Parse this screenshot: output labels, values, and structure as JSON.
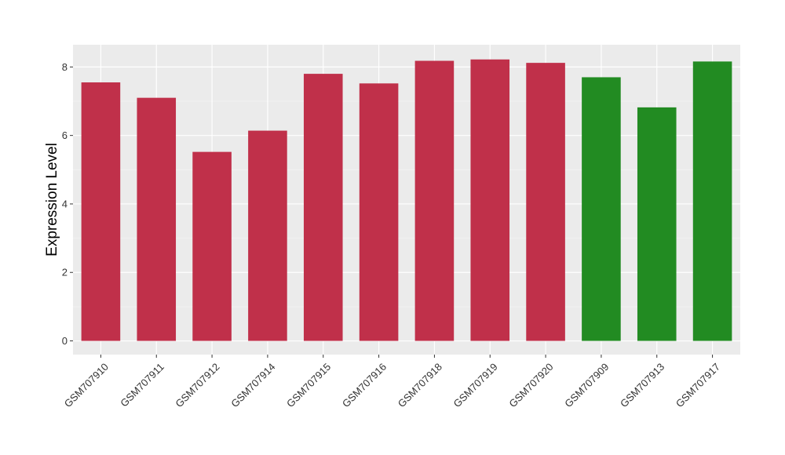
{
  "chart_data": {
    "type": "bar",
    "title": "",
    "xlabel": "",
    "ylabel": "Expression Level",
    "ylim": [
      -0.4,
      8.65
    ],
    "yticks": [
      0,
      2,
      4,
      6,
      8
    ],
    "ytick_labels": [
      "0",
      "2",
      "4",
      "6",
      "8"
    ],
    "grid": true,
    "legend": "none",
    "categories": [
      "GSM707910",
      "GSM707911",
      "GSM707912",
      "GSM707914",
      "GSM707915",
      "GSM707916",
      "GSM707918",
      "GSM707919",
      "GSM707920",
      "GSM707909",
      "GSM707913",
      "GSM707917"
    ],
    "values": [
      7.55,
      7.1,
      5.52,
      6.14,
      7.8,
      7.52,
      8.18,
      8.22,
      8.12,
      7.7,
      6.82,
      8.16
    ],
    "colors": [
      "#c0304a",
      "#c0304a",
      "#c0304a",
      "#c0304a",
      "#c0304a",
      "#c0304a",
      "#c0304a",
      "#c0304a",
      "#c0304a",
      "#228b22",
      "#228b22",
      "#228b22"
    ]
  },
  "style": {
    "panel_background": "#ebebeb",
    "grid_major": "#ffffff",
    "grid_minor": "#f5f5f5",
    "tick_color": "#333333"
  }
}
